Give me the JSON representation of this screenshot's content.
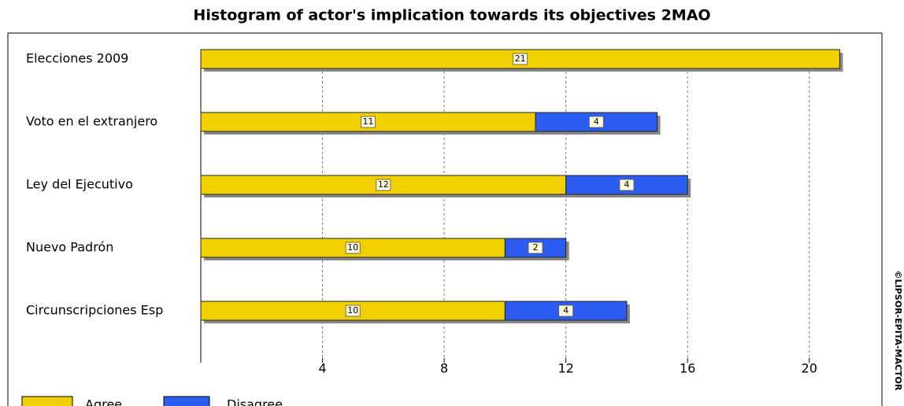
{
  "chart_data": {
    "type": "stacked-barh",
    "title": "Histogram of actor's implication towards its objectives 2MAO",
    "categories": [
      "Elecciones 2009",
      "Voto en el extranjero",
      "Ley del Ejecutivo",
      "Nuevo Padrón",
      "Circunscripciones Esp"
    ],
    "series": [
      {
        "name": "Agree",
        "color": "#f2d000",
        "values": [
          21,
          11,
          12,
          10,
          10
        ]
      },
      {
        "name": "Disagree",
        "color": "#2c5cf0",
        "values": [
          null,
          4,
          4,
          2,
          4
        ]
      }
    ],
    "xlim": [
      0,
      22
    ],
    "xticks": [
      4,
      8,
      12,
      16,
      20
    ],
    "grid": true,
    "legend": "bottom",
    "watermark": "©LIPSOR-EPITA-MACTOR"
  }
}
